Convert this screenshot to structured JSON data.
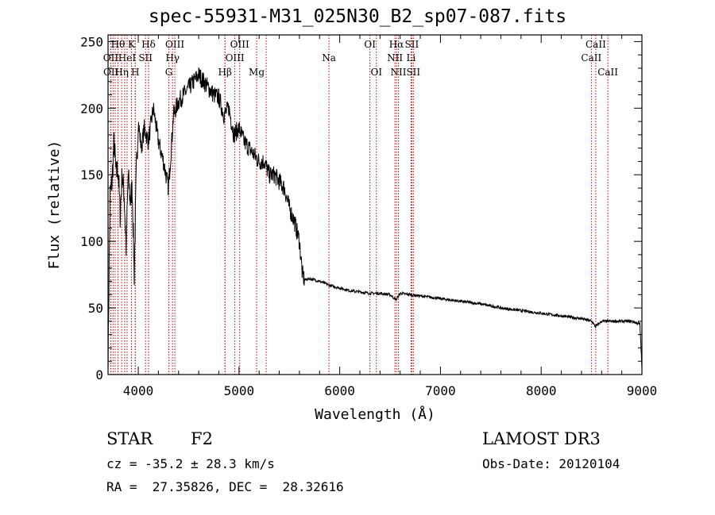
{
  "chart_data": {
    "type": "line",
    "title": "spec-55931-M31_025N30_B2_sp07-087.fits",
    "xlabel": "Wavelength (Å)",
    "ylabel": "Flux (relative)",
    "xlim": [
      3700,
      9000
    ],
    "ylim": [
      0,
      255
    ],
    "xticks": [
      4000,
      5000,
      6000,
      7000,
      8000,
      9000
    ],
    "yticks": [
      0,
      50,
      100,
      150,
      200,
      250
    ],
    "series": [
      {
        "name": "spectrum",
        "x": [
          3700,
          3720,
          3740,
          3760,
          3780,
          3800,
          3820,
          3840,
          3860,
          3880,
          3900,
          3920,
          3940,
          3960,
          3980,
          4000,
          4030,
          4060,
          4100,
          4150,
          4200,
          4250,
          4300,
          4350,
          4400,
          4450,
          4500,
          4550,
          4600,
          4650,
          4700,
          4750,
          4800,
          4850,
          4900,
          4950,
          5000,
          5050,
          5100,
          5150,
          5200,
          5250,
          5300,
          5350,
          5400,
          5450,
          5500,
          5550,
          5600,
          5630,
          5650,
          5700,
          5800,
          5900,
          6000,
          6100,
          6200,
          6300,
          6400,
          6500,
          6560,
          6600,
          6700,
          6800,
          6900,
          7000,
          7200,
          7400,
          7600,
          7800,
          8000,
          8200,
          8400,
          8500,
          8540,
          8600,
          8700,
          8800,
          8900,
          8980,
          9000
        ],
        "y": [
          10,
          135,
          145,
          175,
          150,
          155,
          120,
          150,
          135,
          95,
          150,
          130,
          140,
          75,
          150,
          190,
          170,
          185,
          175,
          200,
          175,
          160,
          140,
          195,
          205,
          210,
          215,
          220,
          225,
          220,
          215,
          210,
          208,
          195,
          200,
          180,
          185,
          175,
          170,
          165,
          160,
          160,
          150,
          150,
          145,
          140,
          125,
          115,
          100,
          75,
          71,
          72,
          70,
          67,
          65,
          63,
          62,
          61,
          61,
          60,
          56,
          61,
          60,
          59,
          58,
          57,
          55,
          53,
          50,
          48,
          46,
          44,
          42,
          40,
          36,
          40,
          40,
          40,
          40,
          38,
          5
        ]
      }
    ],
    "line_labels_row1": [
      {
        "wl": 3798,
        "label": "Hθ"
      },
      {
        "wl": 3933,
        "label": "K"
      },
      {
        "wl": 4102,
        "label": "Hδ"
      },
      {
        "wl": 4363,
        "label": "OIII"
      },
      {
        "wl": 5007,
        "label": "OIII"
      },
      {
        "wl": 6300,
        "label": "OI"
      },
      {
        "wl": 6563,
        "label": "Hα"
      },
      {
        "wl": 6716,
        "label": "SII"
      },
      {
        "wl": 8542,
        "label": "CaII"
      }
    ],
    "line_labels_row2": [
      {
        "wl": 3727,
        "label": "OII"
      },
      {
        "wl": 3889,
        "label": "HeI"
      },
      {
        "wl": 4072,
        "label": "SII"
      },
      {
        "wl": 4340,
        "label": "Hγ"
      },
      {
        "wl": 4959,
        "label": "OIII"
      },
      {
        "wl": 5893,
        "label": "Na"
      },
      {
        "wl": 6548,
        "label": "NII"
      },
      {
        "wl": 6708,
        "label": "Li"
      },
      {
        "wl": 8498,
        "label": "CaII"
      }
    ],
    "line_labels_row3": [
      {
        "wl": 3729,
        "label": "OII"
      },
      {
        "wl": 3835,
        "label": "Hη"
      },
      {
        "wl": 3970,
        "label": "H"
      },
      {
        "wl": 4304,
        "label": "G"
      },
      {
        "wl": 4861,
        "label": "Hβ"
      },
      {
        "wl": 5175,
        "label": "Mg"
      },
      {
        "wl": 6364,
        "label": "OI"
      },
      {
        "wl": 6583,
        "label": "NII"
      },
      {
        "wl": 6731,
        "label": "SII"
      },
      {
        "wl": 8662,
        "label": "CaII"
      }
    ],
    "extra_line_markers": [
      3750,
      3771,
      3865,
      3933,
      3970,
      4102,
      4861,
      5270
    ]
  },
  "info": {
    "class": "STAR",
    "subclass": "F2",
    "survey": "LAMOST DR3",
    "cz": "cz = -35.2 ± 28.3 km/s",
    "obsdate": "Obs-Date: 20120104",
    "radec": "RA =  27.35826, DEC =  28.32616"
  },
  "colors": {
    "line_marker": "#c00000",
    "spectrum": "#000000",
    "axes": "#000000"
  }
}
